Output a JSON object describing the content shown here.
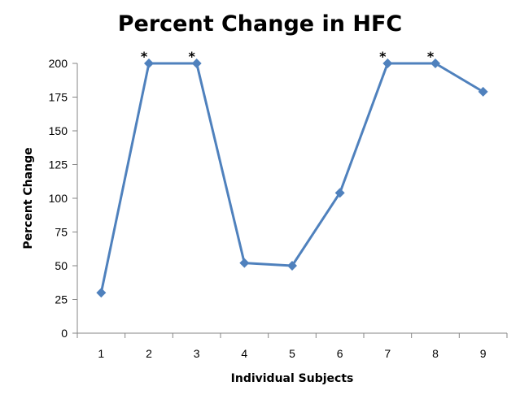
{
  "chart_data": {
    "type": "line",
    "title": "Percent Change in HFC",
    "xlabel": "Individual Subjects",
    "ylabel": "Percent Change",
    "categories": [
      "1",
      "2",
      "3",
      "4",
      "5",
      "6",
      "7",
      "8",
      "9"
    ],
    "series": [
      {
        "values": [
          30,
          200,
          200,
          52,
          50,
          104,
          200,
          200,
          179
        ]
      }
    ],
    "annotations": [
      {
        "category": "2",
        "text": "*"
      },
      {
        "category": "3",
        "text": "*"
      },
      {
        "category": "7",
        "text": "*"
      },
      {
        "category": "8",
        "text": "*"
      }
    ],
    "ylim": [
      0,
      200
    ],
    "yticks": [
      0,
      25,
      50,
      75,
      100,
      125,
      150,
      175,
      200
    ],
    "grid": false,
    "legend": "none",
    "series_color": "#4F81BD",
    "axis_color": "#868686"
  }
}
